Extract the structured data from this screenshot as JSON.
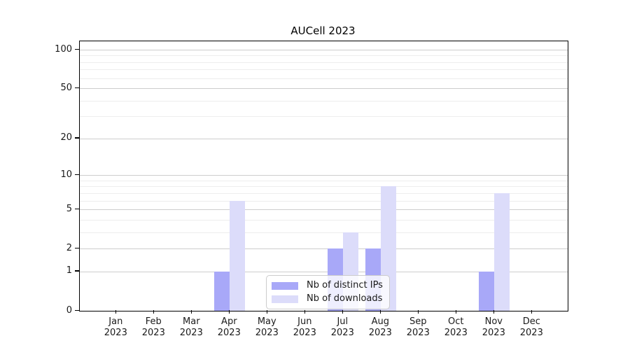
{
  "chart_data": {
    "type": "bar",
    "title": "AUCell 2023",
    "categories": [
      "Jan",
      "Feb",
      "Mar",
      "Apr",
      "May",
      "Jun",
      "Jul",
      "Aug",
      "Sep",
      "Oct",
      "Nov",
      "Dec"
    ],
    "x_tick_year": "2023",
    "series": [
      {
        "name": "Nb of distinct IPs",
        "color": "#a8a8f8",
        "values": [
          0,
          0,
          0,
          1,
          0,
          0,
          2,
          2,
          0,
          0,
          1,
          0
        ]
      },
      {
        "name": "Nb of downloads",
        "color": "#dcdcfa",
        "values": [
          0,
          0,
          0,
          6,
          0,
          0,
          3,
          8,
          0,
          0,
          7,
          0
        ]
      }
    ],
    "yscale": "log1p",
    "ylim": [
      0,
      117
    ],
    "yticks": [
      0,
      1,
      2,
      5,
      10,
      20,
      50,
      100
    ],
    "minor_gridlines": [
      3,
      4,
      6,
      7,
      8,
      9,
      30,
      40,
      60,
      70,
      80,
      90
    ],
    "grid": "horizontal",
    "legend_position": "lower-center"
  },
  "colors": {
    "major_grid": "#cdcdcd",
    "minor_grid": "#ededed",
    "axis": "#000000",
    "text": "#1a1a1a",
    "legend_border": "#cccccc",
    "bar_distinct_ips": "#a8a8f8",
    "bar_downloads": "#dcdcfa"
  }
}
